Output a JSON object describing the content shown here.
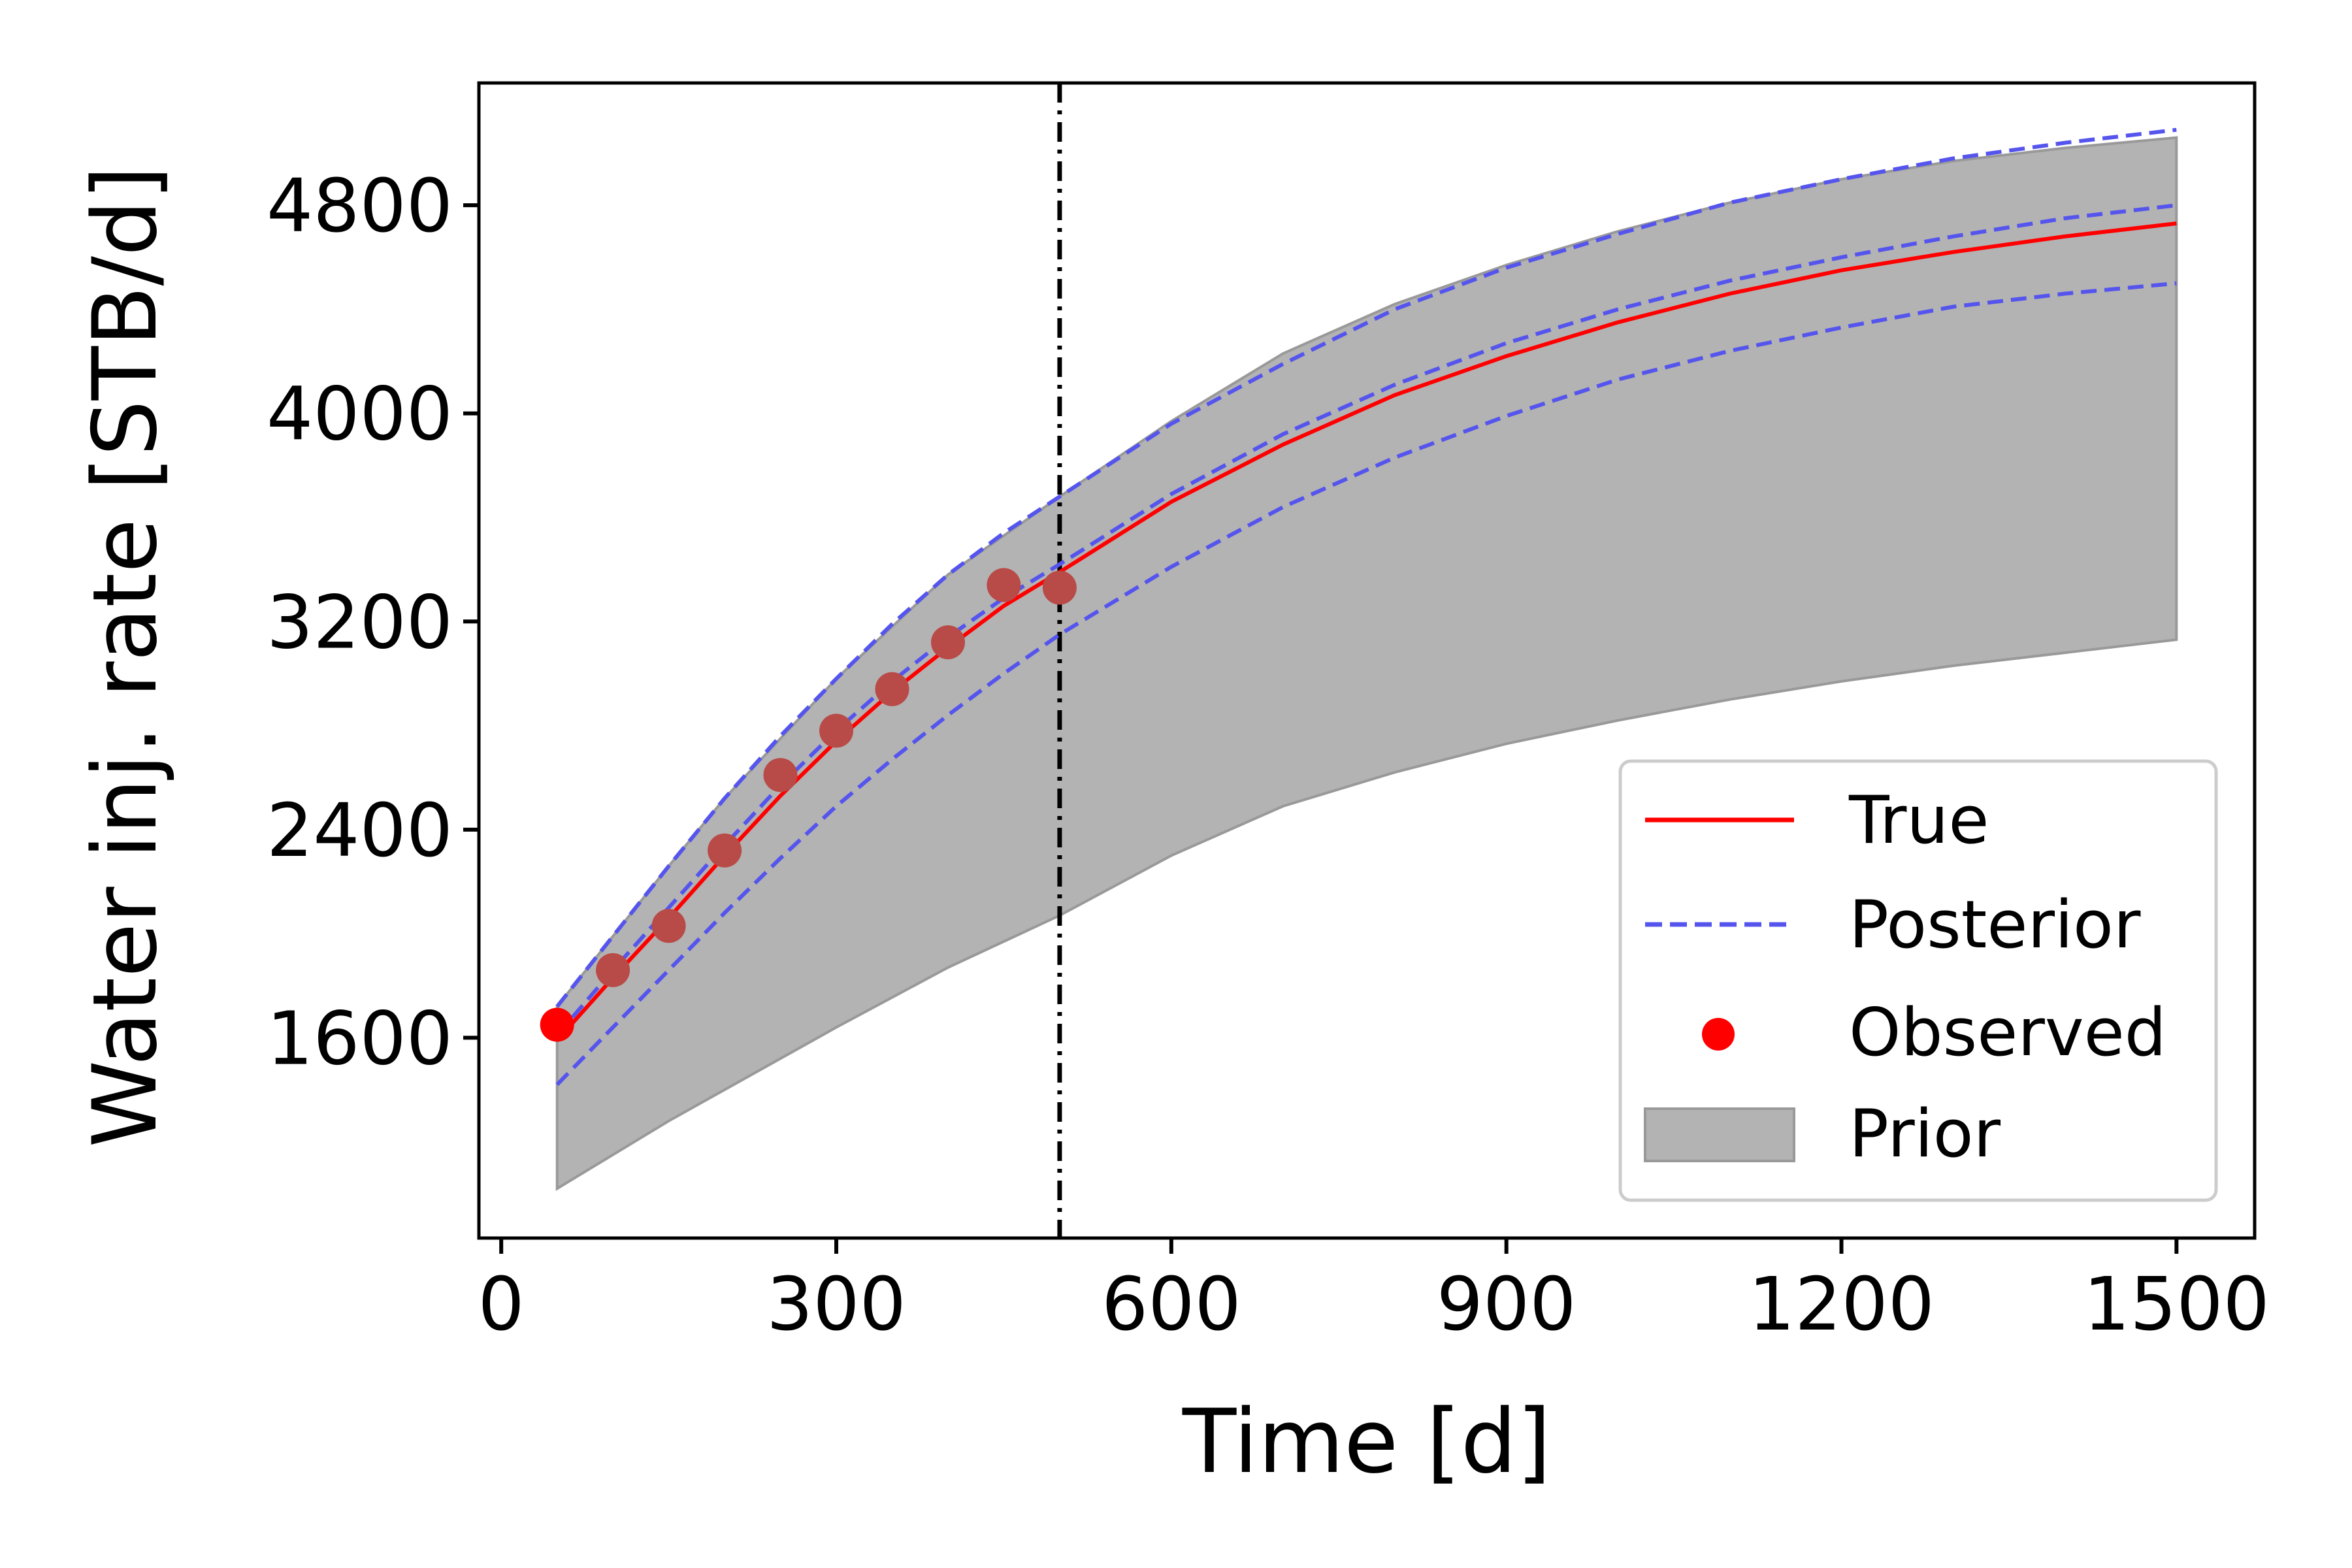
{
  "chart_data": {
    "type": "line",
    "xlabel": "Time [d]",
    "ylabel": "Water inj. rate [STB/d]",
    "xlim": [
      -20,
      1570
    ],
    "ylim": [
      830,
      5270
    ],
    "xticks": [
      0,
      300,
      600,
      900,
      1200,
      1500
    ],
    "yticks": [
      1600,
      2400,
      3200,
      4000,
      4800
    ],
    "xtick_labels": [
      "0",
      "300",
      "600",
      "900",
      "1200",
      "1500"
    ],
    "ytick_labels": [
      "1600",
      "2400",
      "3200",
      "4000",
      "4800"
    ],
    "vline_x": 500,
    "grid": false,
    "legend_position": "lower-right",
    "legend": {
      "true": "True",
      "posterior": "Posterior",
      "observed": "Observed",
      "prior": "Prior"
    },
    "colors": {
      "true": "#ff0000",
      "posterior": "#5555ee",
      "observed": "#ff0000",
      "observed_faded": "#b84a48",
      "prior": "#b3b3b3",
      "prior_edge": "#999999",
      "vline": "#000000"
    },
    "prior_band": {
      "x": [
        50,
        100,
        150,
        200,
        300,
        400,
        500,
        600,
        700,
        800,
        900,
        1000,
        1100,
        1200,
        1300,
        1400,
        1500
      ],
      "upper": [
        1720,
        1990,
        2260,
        2520,
        2980,
        3380,
        3680,
        3970,
        4230,
        4420,
        4570,
        4700,
        4810,
        4900,
        4970,
        5020,
        5060
      ],
      "lower": [
        1020,
        1150,
        1280,
        1400,
        1640,
        1870,
        2070,
        2300,
        2490,
        2620,
        2730,
        2820,
        2900,
        2970,
        3030,
        3080,
        3130
      ]
    },
    "series": [
      {
        "name": "True",
        "style": "solid",
        "x": [
          50,
          100,
          150,
          200,
          250,
          300,
          350,
          400,
          450,
          500,
          600,
          700,
          800,
          900,
          1000,
          1100,
          1200,
          1300,
          1400,
          1500
        ],
        "y": [
          1590,
          1830,
          2060,
          2300,
          2530,
          2740,
          2930,
          3100,
          3260,
          3390,
          3660,
          3880,
          4070,
          4220,
          4350,
          4460,
          4550,
          4620,
          4680,
          4730
        ]
      },
      {
        "name": "Posterior upper",
        "style": "dashed",
        "x": [
          50,
          100,
          150,
          200,
          250,
          300,
          350,
          400,
          450,
          500,
          600,
          700,
          800,
          900,
          1000,
          1100,
          1200,
          1300,
          1400,
          1500
        ],
        "y": [
          1720,
          1990,
          2260,
          2520,
          2760,
          2980,
          3190,
          3380,
          3540,
          3680,
          3960,
          4190,
          4400,
          4560,
          4690,
          4810,
          4900,
          4980,
          5040,
          5090
        ]
      },
      {
        "name": "Posterior mid",
        "style": "dashed",
        "x": [
          50,
          100,
          150,
          200,
          250,
          300,
          350,
          400,
          450,
          500,
          600,
          700,
          800,
          900,
          1000,
          1100,
          1200,
          1300,
          1400,
          1500
        ],
        "y": [
          1610,
          1860,
          2100,
          2340,
          2570,
          2780,
          2970,
          3140,
          3290,
          3420,
          3690,
          3920,
          4110,
          4270,
          4400,
          4510,
          4600,
          4680,
          4750,
          4800
        ]
      },
      {
        "name": "Posterior lower",
        "style": "dashed",
        "x": [
          50,
          100,
          150,
          200,
          250,
          300,
          350,
          400,
          450,
          500,
          600,
          700,
          800,
          900,
          1000,
          1100,
          1200,
          1300,
          1400,
          1500
        ],
        "y": [
          1420,
          1640,
          1860,
          2080,
          2290,
          2490,
          2670,
          2840,
          3000,
          3150,
          3410,
          3640,
          3830,
          3990,
          4130,
          4240,
          4330,
          4410,
          4460,
          4500
        ]
      }
    ],
    "observed": {
      "x": [
        50,
        100,
        150,
        200,
        250,
        300,
        350,
        400,
        450,
        500
      ],
      "y": [
        1650,
        1860,
        2030,
        2320,
        2610,
        2780,
        2940,
        3120,
        3340,
        3330
      ]
    }
  }
}
